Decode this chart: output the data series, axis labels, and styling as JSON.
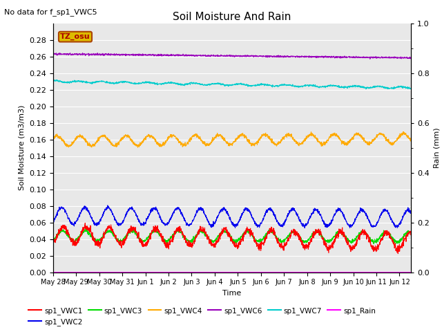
{
  "title": "Soil Moisture And Rain",
  "top_left_text": "No data for f_sp1_VWC5",
  "annotation_text": "TZ_osu",
  "annotation_color": "#ddbb00",
  "xlabel": "Time",
  "ylabel_left": "Soil Moisture (m3/m3)",
  "ylabel_right": "Rain (mm)",
  "xlim_days": [
    0,
    15.5
  ],
  "ylim_left": [
    0.0,
    0.3
  ],
  "ylim_right": [
    0.0,
    1.0
  ],
  "background_color": "#e8e8e8",
  "tick_labels": [
    "May 28",
    "May 29",
    "May 30",
    "May 31",
    "Jun 1",
    "Jun 2",
    "Jun 3",
    "Jun 4",
    "Jun 5",
    "Jun 6",
    "Jun 7",
    "Jun 8",
    "Jun 9",
    "Jun 10",
    "Jun 11",
    "Jun 12"
  ],
  "colors": {
    "sp1_VWC1": "#ff0000",
    "sp1_VWC2": "#0000ee",
    "sp1_VWC3": "#00dd00",
    "sp1_VWC4": "#ffaa00",
    "sp1_VWC6": "#9900bb",
    "sp1_VWC7": "#00cccc",
    "sp1_Rain": "#ff00ff"
  },
  "n_points": 2000,
  "day_start": 0,
  "day_end": 15.5
}
